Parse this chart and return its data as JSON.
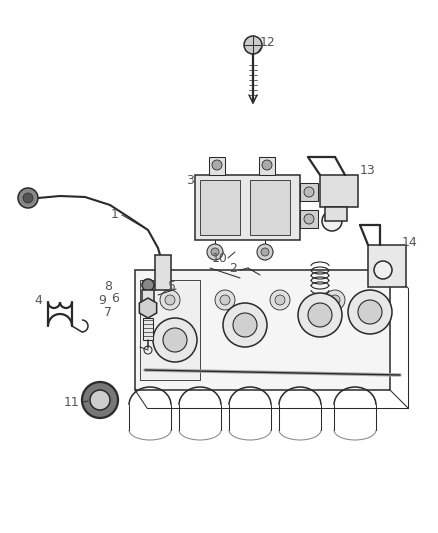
{
  "bg_color": "#ffffff",
  "line_color": "#2a2a2a",
  "label_color": "#555555",
  "fig_width": 4.38,
  "fig_height": 5.33,
  "dpi": 100
}
